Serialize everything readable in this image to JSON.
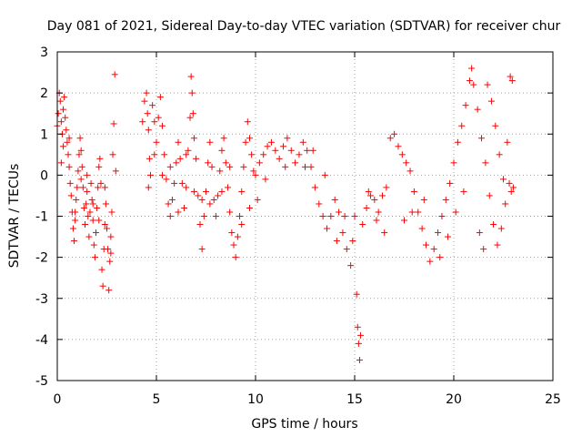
{
  "chart_data": {
    "type": "scatter",
    "title": "Day 081 of 2021, Sidereal Day-to-day VTEC variation (SDTVAR) for receiver chur",
    "xlabel": "GPS time / hours",
    "ylabel": "SDTVAR / TECUs",
    "xlim": [
      0,
      25
    ],
    "ylim": [
      -5,
      3
    ],
    "xticks": [
      0,
      5,
      10,
      15,
      20,
      25
    ],
    "yticks": [
      -5,
      -4,
      -3,
      -2,
      -1,
      0,
      1,
      2,
      3
    ],
    "grid": true,
    "marker": "+",
    "colors": {
      "series": "#ff0000",
      "axes": "#000000",
      "grid": "#a0a0a0"
    },
    "series": [
      {
        "name": "SDTVAR",
        "points": [
          [
            0.0,
            1.2
          ],
          [
            0.05,
            1.5
          ],
          [
            0.1,
            2.0
          ],
          [
            0.15,
            1.8
          ],
          [
            0.2,
            1.3
          ],
          [
            0.25,
            1.0
          ],
          [
            0.3,
            1.6
          ],
          [
            0.35,
            1.9
          ],
          [
            0.4,
            1.4
          ],
          [
            0.45,
            1.1
          ],
          [
            0.5,
            0.8
          ],
          [
            0.55,
            0.5
          ],
          [
            0.6,
            0.2
          ],
          [
            0.65,
            -0.2
          ],
          [
            0.7,
            -0.5
          ],
          [
            0.75,
            -0.9
          ],
          [
            0.8,
            -1.3
          ],
          [
            0.85,
            -1.6
          ],
          [
            0.9,
            -1.1
          ],
          [
            0.95,
            -0.6
          ],
          [
            1.0,
            -0.3
          ],
          [
            1.05,
            0.1
          ],
          [
            1.1,
            0.5
          ],
          [
            1.15,
            0.9
          ],
          [
            1.2,
            0.6
          ],
          [
            1.25,
            0.2
          ],
          [
            1.3,
            -0.3
          ],
          [
            1.35,
            -0.8
          ],
          [
            1.4,
            -1.2
          ],
          [
            1.45,
            -0.7
          ],
          [
            1.5,
            -0.4
          ],
          [
            1.55,
            -1.0
          ],
          [
            1.6,
            -1.5
          ],
          [
            1.65,
            -0.9
          ],
          [
            1.7,
            -0.2
          ],
          [
            1.75,
            -0.6
          ],
          [
            1.8,
            -1.1
          ],
          [
            1.85,
            -1.7
          ],
          [
            1.9,
            -2.0
          ],
          [
            1.95,
            -1.4
          ],
          [
            2.0,
            -0.8
          ],
          [
            2.05,
            -0.3
          ],
          [
            2.1,
            0.2
          ],
          [
            2.15,
            0.4
          ],
          [
            2.2,
            -0.2
          ],
          [
            2.25,
            -2.3
          ],
          [
            2.3,
            -2.7
          ],
          [
            2.35,
            -1.8
          ],
          [
            2.4,
            -1.2
          ],
          [
            2.45,
            -0.7
          ],
          [
            2.5,
            -1.3
          ],
          [
            2.55,
            -1.8
          ],
          [
            2.6,
            -2.8
          ],
          [
            2.65,
            -2.1
          ],
          [
            2.7,
            -1.5
          ],
          [
            2.75,
            -0.9
          ],
          [
            2.8,
            0.5
          ],
          [
            2.85,
            1.25
          ],
          [
            2.9,
            2.45
          ],
          [
            2.95,
            0.1
          ],
          [
            0.3,
            0.7
          ],
          [
            0.6,
            0.9
          ],
          [
            0.9,
            -0.9
          ],
          [
            1.2,
            -0.1
          ],
          [
            1.5,
            0.0
          ],
          [
            1.8,
            -0.7
          ],
          [
            2.1,
            -1.1
          ],
          [
            2.4,
            -0.3
          ],
          [
            2.7,
            -1.9
          ],
          [
            0.2,
            0.3
          ],
          [
            4.3,
            1.3
          ],
          [
            4.4,
            1.8
          ],
          [
            4.5,
            2.0
          ],
          [
            4.55,
            1.5
          ],
          [
            4.6,
            1.1
          ],
          [
            4.65,
            0.4
          ],
          [
            4.7,
            0.0
          ],
          [
            4.8,
            1.7
          ],
          [
            4.9,
            1.3
          ],
          [
            5.0,
            0.8
          ],
          [
            5.1,
            1.4
          ],
          [
            5.2,
            1.9
          ],
          [
            5.3,
            1.2
          ],
          [
            5.4,
            0.5
          ],
          [
            5.5,
            -0.1
          ],
          [
            5.6,
            -0.7
          ],
          [
            5.7,
            -1.0
          ],
          [
            5.8,
            -0.6
          ],
          [
            5.9,
            -0.2
          ],
          [
            6.0,
            0.3
          ],
          [
            6.1,
            0.8
          ],
          [
            6.2,
            0.4
          ],
          [
            6.3,
            -0.2
          ],
          [
            6.4,
            -0.8
          ],
          [
            6.5,
            -0.3
          ],
          [
            6.6,
            0.6
          ],
          [
            6.7,
            1.4
          ],
          [
            6.75,
            2.4
          ],
          [
            6.8,
            2.0
          ],
          [
            6.85,
            1.5
          ],
          [
            6.9,
            0.9
          ],
          [
            7.0,
            0.4
          ],
          [
            7.1,
            -0.5
          ],
          [
            7.2,
            -1.2
          ],
          [
            7.3,
            -1.8
          ],
          [
            7.4,
            -1.0
          ],
          [
            7.5,
            -0.4
          ],
          [
            7.6,
            0.3
          ],
          [
            7.7,
            0.8
          ],
          [
            7.8,
            0.2
          ],
          [
            7.9,
            -0.6
          ],
          [
            8.0,
            -1.0
          ],
          [
            8.1,
            -0.5
          ],
          [
            8.2,
            0.1
          ],
          [
            8.3,
            0.6
          ],
          [
            8.4,
            0.9
          ],
          [
            8.5,
            0.3
          ],
          [
            8.6,
            -0.3
          ],
          [
            8.7,
            -0.9
          ],
          [
            8.8,
            -1.4
          ],
          [
            8.9,
            -1.7
          ],
          [
            9.0,
            -2.0
          ],
          [
            9.1,
            -1.5
          ],
          [
            9.2,
            -1.0
          ],
          [
            9.3,
            -0.4
          ],
          [
            9.4,
            0.2
          ],
          [
            9.5,
            0.8
          ],
          [
            9.6,
            1.3
          ],
          [
            9.7,
            0.9
          ],
          [
            9.8,
            0.5
          ],
          [
            9.9,
            0.1
          ],
          [
            10.0,
            0.0
          ],
          [
            10.2,
            0.3
          ],
          [
            10.4,
            0.5
          ],
          [
            10.6,
            0.7
          ],
          [
            10.8,
            0.8
          ],
          [
            11.0,
            0.6
          ],
          [
            11.2,
            0.4
          ],
          [
            11.4,
            0.7
          ],
          [
            11.6,
            0.9
          ],
          [
            11.8,
            0.6
          ],
          [
            12.0,
            0.3
          ],
          [
            12.2,
            0.5
          ],
          [
            12.4,
            0.8
          ],
          [
            12.6,
            0.6
          ],
          [
            12.8,
            0.2
          ],
          [
            13.0,
            -0.3
          ],
          [
            13.2,
            -0.7
          ],
          [
            13.4,
            -1.0
          ],
          [
            13.6,
            -1.3
          ],
          [
            13.8,
            -1.0
          ],
          [
            14.0,
            -0.6
          ],
          [
            14.2,
            -0.9
          ],
          [
            14.4,
            -1.4
          ],
          [
            14.6,
            -1.8
          ],
          [
            14.8,
            -2.2
          ],
          [
            14.9,
            -1.6
          ],
          [
            15.0,
            -1.0
          ],
          [
            15.1,
            -2.9
          ],
          [
            15.15,
            -3.7
          ],
          [
            15.2,
            -4.1
          ],
          [
            15.25,
            -4.5
          ],
          [
            15.3,
            -3.9
          ],
          [
            15.4,
            -1.2
          ],
          [
            15.6,
            -0.8
          ],
          [
            15.8,
            -0.5
          ],
          [
            16.0,
            -0.6
          ],
          [
            16.2,
            -0.9
          ],
          [
            16.4,
            -0.5
          ],
          [
            16.6,
            -0.3
          ],
          [
            16.8,
            0.9
          ],
          [
            17.0,
            1.0
          ],
          [
            17.2,
            0.7
          ],
          [
            17.4,
            0.5
          ],
          [
            17.6,
            0.3
          ],
          [
            17.8,
            0.1
          ],
          [
            18.0,
            -0.4
          ],
          [
            18.2,
            -0.9
          ],
          [
            18.4,
            -1.3
          ],
          [
            18.6,
            -1.7
          ],
          [
            18.8,
            -2.1
          ],
          [
            19.0,
            -1.8
          ],
          [
            19.2,
            -1.4
          ],
          [
            19.4,
            -1.0
          ],
          [
            19.6,
            -0.6
          ],
          [
            19.8,
            -0.2
          ],
          [
            20.0,
            0.3
          ],
          [
            20.2,
            0.8
          ],
          [
            20.4,
            1.2
          ],
          [
            20.6,
            1.7
          ],
          [
            20.8,
            2.3
          ],
          [
            20.9,
            2.6
          ],
          [
            21.0,
            2.2
          ],
          [
            21.2,
            1.6
          ],
          [
            21.4,
            0.9
          ],
          [
            21.6,
            0.3
          ],
          [
            21.8,
            -0.5
          ],
          [
            22.0,
            -1.2
          ],
          [
            22.2,
            -1.7
          ],
          [
            22.4,
            -1.3
          ],
          [
            22.6,
            -0.7
          ],
          [
            22.8,
            -0.2
          ],
          [
            22.9,
            -0.4
          ],
          [
            21.7,
            2.2
          ],
          [
            21.9,
            1.8
          ],
          [
            22.1,
            1.2
          ],
          [
            22.3,
            0.5
          ],
          [
            22.5,
            -0.1
          ],
          [
            22.7,
            0.8
          ],
          [
            22.85,
            2.4
          ],
          [
            22.95,
            2.3
          ],
          [
            21.3,
            -1.4
          ],
          [
            21.5,
            -1.8
          ],
          [
            20.5,
            -0.4
          ],
          [
            20.1,
            -0.9
          ],
          [
            19.7,
            -1.5
          ],
          [
            19.3,
            -2.0
          ],
          [
            18.5,
            -0.6
          ],
          [
            17.9,
            -0.9
          ],
          [
            17.5,
            -1.1
          ],
          [
            16.5,
            -1.4
          ],
          [
            16.1,
            -1.1
          ],
          [
            15.7,
            -0.4
          ],
          [
            14.5,
            -1.0
          ],
          [
            14.1,
            -1.6
          ],
          [
            13.5,
            0.0
          ],
          [
            12.9,
            0.6
          ],
          [
            12.5,
            0.2
          ],
          [
            11.5,
            0.2
          ],
          [
            10.5,
            -0.1
          ],
          [
            10.1,
            -0.6
          ],
          [
            9.7,
            -0.8
          ],
          [
            9.3,
            -1.2
          ],
          [
            8.7,
            0.2
          ],
          [
            8.3,
            -0.4
          ],
          [
            7.7,
            -0.7
          ],
          [
            7.3,
            -0.6
          ],
          [
            6.9,
            -0.4
          ],
          [
            6.5,
            0.5
          ],
          [
            6.1,
            -0.9
          ],
          [
            5.7,
            0.2
          ],
          [
            5.3,
            0.0
          ],
          [
            4.9,
            0.5
          ],
          [
            4.6,
            -0.3
          ],
          [
            23.0,
            -0.3
          ]
        ]
      }
    ]
  }
}
